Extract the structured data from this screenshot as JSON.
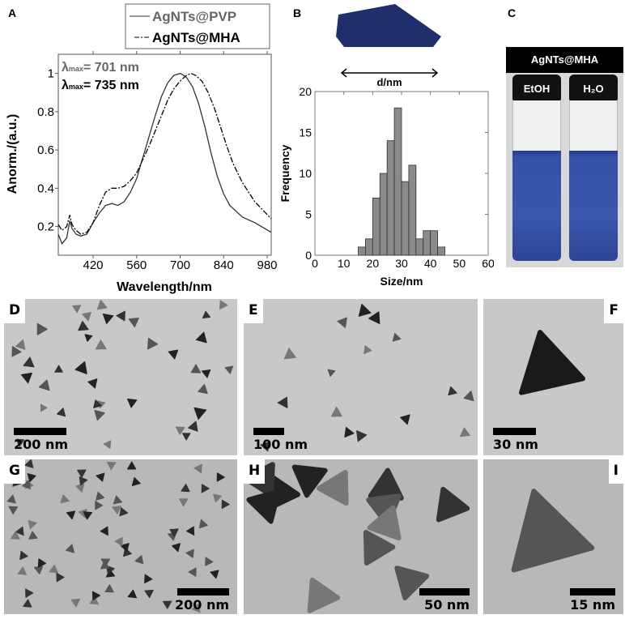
{
  "panel_labels": [
    "A",
    "B",
    "C",
    "D",
    "E",
    "F",
    "G",
    "H",
    "I"
  ],
  "chart_data": [
    {
      "type": "line",
      "xlabel": "Wavelength/nm",
      "ylabel": "Anorm./(a.u.)",
      "xlim": [
        308,
        993
      ],
      "ylim": [
        0.05,
        1.1
      ],
      "xticks": [
        420,
        560,
        700,
        840,
        980
      ],
      "yticks": [
        0.2,
        0.4,
        0.6,
        0.8,
        1
      ],
      "ytick_labels": [
        "0.2",
        "0.4",
        "0.6",
        "0.8",
        "1"
      ],
      "legend_placement": "top-right, outside",
      "annotations": [
        {
          "prefix": "λ",
          "sub": "max",
          "text": "= 701 nm",
          "color": "#666666"
        },
        {
          "prefix": "λ",
          "sub": "max",
          "text": "= 735 nm",
          "color": "#000000"
        }
      ],
      "series": [
        {
          "name": "AgNTs@PVP",
          "style": "solid",
          "color": "#333333",
          "x": [
            308,
            320,
            335,
            345,
            352,
            365,
            380,
            400,
            420,
            440,
            460,
            480,
            500,
            520,
            540,
            560,
            580,
            600,
            620,
            640,
            660,
            680,
            701,
            720,
            740,
            760,
            780,
            800,
            820,
            840,
            860,
            880,
            900,
            940,
            993
          ],
          "y": [
            0.16,
            0.11,
            0.14,
            0.23,
            0.19,
            0.16,
            0.15,
            0.16,
            0.22,
            0.27,
            0.31,
            0.32,
            0.31,
            0.33,
            0.38,
            0.45,
            0.56,
            0.67,
            0.78,
            0.88,
            0.95,
            0.99,
            1.0,
            0.98,
            0.93,
            0.84,
            0.72,
            0.58,
            0.46,
            0.37,
            0.31,
            0.28,
            0.25,
            0.22,
            0.17
          ]
        },
        {
          "name": "AgNTs@MHA",
          "style": "dash-dot",
          "color": "#000000",
          "x": [
            308,
            320,
            335,
            345,
            352,
            365,
            380,
            400,
            420,
            440,
            460,
            480,
            500,
            520,
            540,
            560,
            580,
            600,
            620,
            640,
            660,
            680,
            700,
            720,
            735,
            750,
            770,
            790,
            810,
            830,
            850,
            870,
            900,
            940,
            993
          ],
          "y": [
            0.21,
            0.18,
            0.2,
            0.26,
            0.21,
            0.18,
            0.16,
            0.17,
            0.22,
            0.31,
            0.38,
            0.4,
            0.4,
            0.41,
            0.44,
            0.48,
            0.55,
            0.62,
            0.7,
            0.78,
            0.86,
            0.92,
            0.96,
            0.99,
            1.0,
            0.99,
            0.96,
            0.9,
            0.82,
            0.72,
            0.62,
            0.53,
            0.43,
            0.33,
            0.24
          ]
        }
      ]
    },
    {
      "type": "bar",
      "xlabel": "Size/nm",
      "ylabel": "Frequency",
      "xlim": [
        0,
        60
      ],
      "ylim": [
        0,
        20
      ],
      "xticks": [
        0,
        10,
        20,
        30,
        40,
        50,
        60
      ],
      "yticks": [
        0,
        5,
        10,
        15,
        20
      ],
      "bin_width": 2.5,
      "bin_starts": [
        15,
        17.5,
        20,
        22.5,
        25,
        27.5,
        30,
        32.5,
        35,
        37.5,
        40,
        42.5
      ],
      "values": [
        1,
        2,
        7,
        10,
        14,
        18,
        9,
        11,
        2,
        3,
        3,
        1
      ],
      "bar_color": "#8a8a8a",
      "inset_label": "d/nm",
      "inset_color": "#1f2f6b"
    }
  ],
  "photo": {
    "header": "AgNTs@MHA",
    "vials": [
      {
        "label": "EtOH",
        "liquid_color": "#3552a8"
      },
      {
        "label": "H₂O",
        "liquid_color": "#3552a8"
      }
    ]
  },
  "tem": [
    {
      "label": "D",
      "scale": "200 nm"
    },
    {
      "label": "E",
      "scale": "100 nm"
    },
    {
      "label": "F",
      "scale": "30 nm"
    },
    {
      "label": "G",
      "scale": "200 nm"
    },
    {
      "label": "H",
      "scale": "50 nm"
    },
    {
      "label": "I",
      "scale": "15 nm"
    }
  ]
}
